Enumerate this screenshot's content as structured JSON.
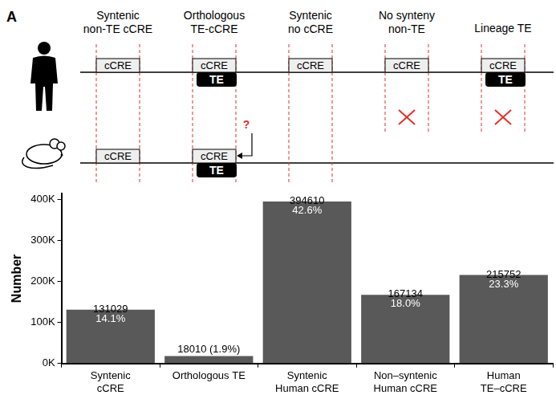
{
  "schematic": {
    "panel_label": "A",
    "columns": [
      {
        "title": [
          "Syntenic",
          "non-TE cCRE"
        ],
        "human": [
          "cCRE"
        ],
        "mouse": [
          "cCRE"
        ]
      },
      {
        "title": [
          "Orthologous",
          "TE-cCRE"
        ],
        "human": [
          "cCRE",
          "TE"
        ],
        "mouse": [
          "cCRE",
          "TE"
        ],
        "mouse_mark": "?"
      },
      {
        "title": [
          "Syntenic",
          "no cCRE"
        ],
        "human": [
          "cCRE"
        ],
        "mouse": []
      },
      {
        "title": [
          "No synteny",
          "non-TE"
        ],
        "human": [
          "cCRE"
        ],
        "mouse": null
      },
      {
        "title": [
          "Lineage TE"
        ],
        "human": [
          "cCRE",
          "TE"
        ],
        "mouse": null
      }
    ]
  },
  "chart_data": {
    "type": "bar",
    "categories": [
      "Syntenic\ncCRE",
      "Orthologous TE",
      "Syntenic\nHuman cCRE",
      "Non–syntenic\nHuman cCRE",
      "Human\nTE–cCRE"
    ],
    "values": [
      131029,
      18010,
      394610,
      167134,
      215752
    ],
    "value_labels": [
      "131029\n14.1%",
      "18010 (1.9%)",
      "394610\n42.6%",
      "167134\n18.0%",
      "215752\n23.3%"
    ],
    "data_labels": true,
    "color": "#595959",
    "ylabel": "Number",
    "ylim": [
      0,
      414000
    ],
    "yticks": [
      {
        "value": 0,
        "label": "0K"
      },
      {
        "value": 100000,
        "label": "100K"
      },
      {
        "value": 200000,
        "label": "200K"
      },
      {
        "value": 300000,
        "label": "300K"
      },
      {
        "value": 400000,
        "label": "400K"
      }
    ],
    "grid": false
  }
}
